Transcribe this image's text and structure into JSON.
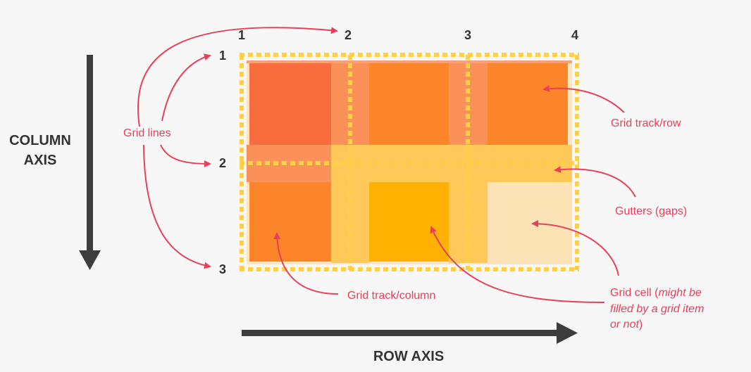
{
  "axes": {
    "column_axis_line1": "COLUMN",
    "column_axis_line2": "AXIS",
    "row_axis": "ROW AXIS"
  },
  "column_line_numbers": [
    "1",
    "2",
    "3",
    "4"
  ],
  "row_line_numbers": [
    "1",
    "2",
    "3"
  ],
  "annotations": {
    "grid_lines": "Grid lines",
    "grid_track_row": "Grid track/row",
    "gutters": "Gutters (gaps)",
    "grid_track_column": "Grid track/column",
    "grid_cell_line1_a": "Grid cell (",
    "grid_cell_line1_b": "might be",
    "grid_cell_line2": "filled by a grid item",
    "grid_cell_line3_a": "or not",
    "grid_cell_line3_b": ")"
  },
  "colors": {
    "background": "#f7f7f7",
    "axis_arrow": "#3d3d3d",
    "annotation": "#e8405a",
    "grid_line_dash": "#ffcf4a",
    "cell_red_orange": "#f86c3d",
    "cell_orange": "#fb8528",
    "cell_amber": "#ffb000",
    "cell_pale": "#fbe3b6",
    "gutter_vertical_row1": "#f99159",
    "gutter_horizontal": "#ffc95a",
    "gutter_pink_band": "#f99159"
  }
}
